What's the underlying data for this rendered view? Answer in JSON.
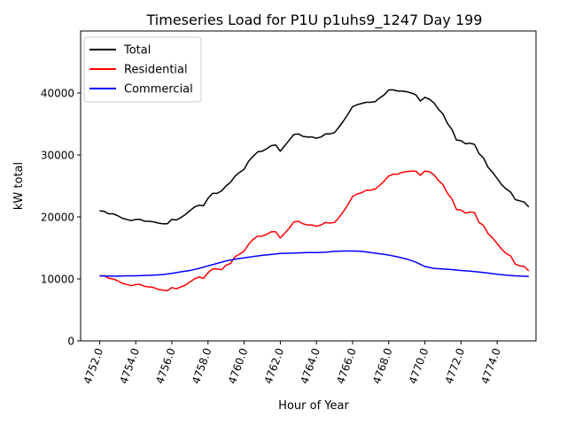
{
  "chart_data": {
    "type": "line",
    "title": "Timeseries Load for P1U p1uhs9_1247  Day 199",
    "xlabel": "Hour of Year",
    "ylabel": "kW total",
    "xlim": [
      4750.95,
      4776.15
    ],
    "ylim": [
      0,
      50000
    ],
    "xticks": [
      4752,
      4754,
      4756,
      4758,
      4760,
      4762,
      4764,
      4766,
      4768,
      4770,
      4772,
      4774
    ],
    "xtick_labels": [
      "4752.0",
      "4754.0",
      "4756.0",
      "4758.0",
      "4760.0",
      "4762.0",
      "4764.0",
      "4766.0",
      "4768.0",
      "4770.0",
      "4772.0",
      "4774.0"
    ],
    "yticks": [
      0,
      10000,
      20000,
      30000,
      40000
    ],
    "ytick_labels": [
      "0",
      "10000",
      "20000",
      "30000",
      "40000"
    ],
    "legend_position": "upper-left",
    "series": [
      {
        "name": "Total",
        "color": "#000000",
        "points": [
          [
            4752.0,
            21000
          ],
          [
            4752.25,
            20900
          ],
          [
            4752.5,
            20500
          ],
          [
            4752.75,
            20500
          ],
          [
            4753.0,
            20200
          ],
          [
            4753.25,
            19800
          ],
          [
            4753.5,
            19600
          ],
          [
            4753.75,
            19400
          ],
          [
            4754.0,
            19600
          ],
          [
            4754.25,
            19600
          ],
          [
            4754.5,
            19300
          ],
          [
            4754.75,
            19300
          ],
          [
            4755.0,
            19200
          ],
          [
            4755.25,
            19000
          ],
          [
            4755.5,
            18900
          ],
          [
            4755.75,
            18900
          ],
          [
            4756.0,
            19600
          ],
          [
            4756.25,
            19500
          ],
          [
            4756.5,
            19900
          ],
          [
            4756.75,
            20400
          ],
          [
            4757.0,
            21000
          ],
          [
            4757.25,
            21600
          ],
          [
            4757.5,
            21900
          ],
          [
            4757.75,
            21800
          ],
          [
            4758.0,
            23000
          ],
          [
            4758.25,
            23800
          ],
          [
            4758.5,
            23800
          ],
          [
            4758.75,
            24200
          ],
          [
            4759.0,
            25000
          ],
          [
            4759.25,
            25600
          ],
          [
            4759.5,
            26600
          ],
          [
            4759.75,
            27200
          ],
          [
            4760.0,
            27700
          ],
          [
            4760.25,
            29000
          ],
          [
            4760.5,
            29800
          ],
          [
            4760.75,
            30500
          ],
          [
            4761.0,
            30600
          ],
          [
            4761.25,
            31000
          ],
          [
            4761.5,
            31500
          ],
          [
            4761.75,
            31600
          ],
          [
            4762.0,
            30600
          ],
          [
            4762.25,
            31500
          ],
          [
            4762.5,
            32400
          ],
          [
            4762.75,
            33300
          ],
          [
            4763.0,
            33400
          ],
          [
            4763.25,
            33000
          ],
          [
            4763.5,
            32900
          ],
          [
            4763.75,
            32900
          ],
          [
            4764.0,
            32700
          ],
          [
            4764.25,
            32900
          ],
          [
            4764.5,
            33400
          ],
          [
            4764.75,
            33400
          ],
          [
            4765.0,
            33600
          ],
          [
            4765.25,
            34500
          ],
          [
            4765.5,
            35500
          ],
          [
            4765.75,
            36600
          ],
          [
            4766.0,
            37800
          ],
          [
            4766.25,
            38100
          ],
          [
            4766.5,
            38300
          ],
          [
            4766.75,
            38500
          ],
          [
            4767.0,
            38500
          ],
          [
            4767.25,
            38600
          ],
          [
            4767.5,
            39200
          ],
          [
            4767.75,
            39700
          ],
          [
            4768.0,
            40500
          ],
          [
            4768.25,
            40500
          ],
          [
            4768.5,
            40300
          ],
          [
            4768.75,
            40300
          ],
          [
            4769.0,
            40200
          ],
          [
            4769.25,
            40000
          ],
          [
            4769.5,
            39700
          ],
          [
            4769.75,
            38700
          ],
          [
            4770.0,
            39300
          ],
          [
            4770.25,
            39000
          ],
          [
            4770.5,
            38400
          ],
          [
            4770.75,
            37400
          ],
          [
            4771.0,
            36600
          ],
          [
            4771.25,
            35100
          ],
          [
            4771.5,
            34100
          ],
          [
            4771.75,
            32400
          ],
          [
            4772.0,
            32300
          ],
          [
            4772.25,
            31800
          ],
          [
            4772.5,
            31900
          ],
          [
            4772.75,
            31700
          ],
          [
            4773.0,
            30200
          ],
          [
            4773.25,
            29500
          ],
          [
            4773.5,
            28000
          ],
          [
            4773.75,
            27200
          ],
          [
            4774.0,
            26200
          ],
          [
            4774.25,
            25200
          ],
          [
            4774.5,
            24500
          ],
          [
            4774.75,
            24000
          ],
          [
            4775.0,
            22800
          ],
          [
            4775.25,
            22600
          ],
          [
            4775.5,
            22400
          ],
          [
            4775.75,
            21600
          ]
        ]
      },
      {
        "name": "Residential",
        "color": "#ff0000",
        "points": [
          [
            4752.0,
            10500
          ],
          [
            4752.25,
            10500
          ],
          [
            4752.5,
            10100
          ],
          [
            4752.75,
            10000
          ],
          [
            4753.0,
            9700
          ],
          [
            4753.25,
            9300
          ],
          [
            4753.5,
            9100
          ],
          [
            4753.75,
            8900
          ],
          [
            4754.0,
            9100
          ],
          [
            4754.25,
            9100
          ],
          [
            4754.5,
            8800
          ],
          [
            4754.75,
            8700
          ],
          [
            4755.0,
            8600
          ],
          [
            4755.25,
            8300
          ],
          [
            4755.5,
            8200
          ],
          [
            4755.75,
            8100
          ],
          [
            4756.0,
            8600
          ],
          [
            4756.25,
            8400
          ],
          [
            4756.5,
            8700
          ],
          [
            4756.75,
            9000
          ],
          [
            4757.0,
            9500
          ],
          [
            4757.25,
            10000
          ],
          [
            4757.5,
            10300
          ],
          [
            4757.75,
            10100
          ],
          [
            4758.0,
            11000
          ],
          [
            4758.25,
            11600
          ],
          [
            4758.5,
            11600
          ],
          [
            4758.75,
            11500
          ],
          [
            4759.0,
            12200
          ],
          [
            4759.25,
            12500
          ],
          [
            4759.5,
            13600
          ],
          [
            4759.75,
            14000
          ],
          [
            4760.0,
            14500
          ],
          [
            4760.25,
            15600
          ],
          [
            4760.5,
            16400
          ],
          [
            4760.75,
            16900
          ],
          [
            4761.0,
            16900
          ],
          [
            4761.25,
            17200
          ],
          [
            4761.5,
            17600
          ],
          [
            4761.75,
            17600
          ],
          [
            4762.0,
            16600
          ],
          [
            4762.25,
            17400
          ],
          [
            4762.5,
            18200
          ],
          [
            4762.75,
            19200
          ],
          [
            4763.0,
            19300
          ],
          [
            4763.25,
            18900
          ],
          [
            4763.5,
            18700
          ],
          [
            4763.75,
            18700
          ],
          [
            4764.0,
            18500
          ],
          [
            4764.25,
            18700
          ],
          [
            4764.5,
            19100
          ],
          [
            4764.75,
            19000
          ],
          [
            4765.0,
            19100
          ],
          [
            4765.25,
            19900
          ],
          [
            4765.5,
            20900
          ],
          [
            4765.75,
            22000
          ],
          [
            4766.0,
            23300
          ],
          [
            4766.25,
            23700
          ],
          [
            4766.5,
            23900
          ],
          [
            4766.75,
            24300
          ],
          [
            4767.0,
            24300
          ],
          [
            4767.25,
            24500
          ],
          [
            4767.5,
            25100
          ],
          [
            4767.75,
            25800
          ],
          [
            4768.0,
            26600
          ],
          [
            4768.25,
            26900
          ],
          [
            4768.5,
            26900
          ],
          [
            4768.75,
            27200
          ],
          [
            4769.0,
            27300
          ],
          [
            4769.25,
            27400
          ],
          [
            4769.5,
            27400
          ],
          [
            4769.75,
            26700
          ],
          [
            4770.0,
            27400
          ],
          [
            4770.25,
            27300
          ],
          [
            4770.5,
            26800
          ],
          [
            4770.75,
            25900
          ],
          [
            4771.0,
            25200
          ],
          [
            4771.25,
            23800
          ],
          [
            4771.5,
            22900
          ],
          [
            4771.75,
            21200
          ],
          [
            4772.0,
            21100
          ],
          [
            4772.25,
            20600
          ],
          [
            4772.5,
            20800
          ],
          [
            4772.75,
            20700
          ],
          [
            4773.0,
            19100
          ],
          [
            4773.25,
            18600
          ],
          [
            4773.5,
            17300
          ],
          [
            4773.75,
            16600
          ],
          [
            4774.0,
            15700
          ],
          [
            4774.25,
            14800
          ],
          [
            4774.5,
            14100
          ],
          [
            4774.75,
            13700
          ],
          [
            4775.0,
            12400
          ],
          [
            4775.25,
            12100
          ],
          [
            4775.5,
            12000
          ],
          [
            4775.75,
            11300
          ]
        ]
      },
      {
        "name": "Commercial",
        "color": "#0000ff",
        "points": [
          [
            4752.0,
            10500
          ],
          [
            4752.5,
            10450
          ],
          [
            4753.0,
            10450
          ],
          [
            4753.5,
            10500
          ],
          [
            4754.0,
            10500
          ],
          [
            4754.5,
            10550
          ],
          [
            4755.0,
            10600
          ],
          [
            4755.5,
            10700
          ],
          [
            4756.0,
            10900
          ],
          [
            4756.5,
            11150
          ],
          [
            4757.0,
            11350
          ],
          [
            4757.5,
            11700
          ],
          [
            4758.0,
            12100
          ],
          [
            4758.5,
            12500
          ],
          [
            4759.0,
            12900
          ],
          [
            4759.5,
            13200
          ],
          [
            4760.0,
            13400
          ],
          [
            4760.5,
            13600
          ],
          [
            4761.0,
            13800
          ],
          [
            4761.5,
            13950
          ],
          [
            4762.0,
            14100
          ],
          [
            4762.5,
            14150
          ],
          [
            4763.0,
            14200
          ],
          [
            4763.5,
            14250
          ],
          [
            4764.0,
            14250
          ],
          [
            4764.5,
            14300
          ],
          [
            4765.0,
            14450
          ],
          [
            4765.5,
            14500
          ],
          [
            4766.0,
            14500
          ],
          [
            4766.5,
            14450
          ],
          [
            4767.0,
            14250
          ],
          [
            4767.5,
            14050
          ],
          [
            4768.0,
            13850
          ],
          [
            4768.5,
            13550
          ],
          [
            4769.0,
            13200
          ],
          [
            4769.5,
            12700
          ],
          [
            4770.0,
            12000
          ],
          [
            4770.5,
            11700
          ],
          [
            4771.0,
            11600
          ],
          [
            4771.5,
            11500
          ],
          [
            4772.0,
            11350
          ],
          [
            4772.5,
            11250
          ],
          [
            4773.0,
            11100
          ],
          [
            4773.5,
            10950
          ],
          [
            4774.0,
            10750
          ],
          [
            4774.5,
            10600
          ],
          [
            4775.0,
            10500
          ],
          [
            4775.75,
            10400
          ]
        ]
      }
    ]
  }
}
